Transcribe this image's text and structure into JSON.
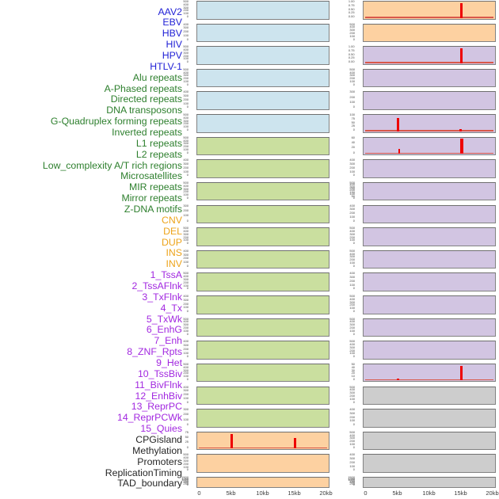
{
  "chart_data": {
    "type": "bar",
    "layout": "44 genomic feature density tracks; features 1-22 in left panel column, features 23-44 in right panel column; each panel spans 0-20kb",
    "x_axis": {
      "tick_labels": [
        "0",
        "5kb",
        "10kb",
        "15kb",
        "20kb"
      ],
      "kb_values": [
        0,
        5,
        10,
        15,
        20
      ],
      "range_kb": [
        0,
        20
      ]
    },
    "group_colors": {
      "virus": "#2323d6",
      "repeat": "#2d7f2d",
      "structural_variant": "#eda41b",
      "chromatin_state": "#a228e0",
      "other": "#262626"
    },
    "panel_bg_colors": {
      "blue": "#cde4ee",
      "green": "#cadf9f",
      "orange": "#fdd1a1",
      "purple": "#d2c5e2",
      "gray": "#cdcdcd"
    },
    "spike_color": "#ee0000",
    "baseline_color": "#d9584a",
    "features": [
      {
        "text": "AAV2",
        "group": "virus"
      },
      {
        "text": "EBV",
        "group": "virus"
      },
      {
        "text": "HBV",
        "group": "virus"
      },
      {
        "text": "HIV",
        "group": "virus"
      },
      {
        "text": "HPV",
        "group": "virus"
      },
      {
        "text": "HTLV-1",
        "group": "virus"
      },
      {
        "text": "Alu repeats",
        "group": "repeat"
      },
      {
        "text": "A-Phased repeats",
        "group": "repeat"
      },
      {
        "text": "Directed repeats",
        "group": "repeat"
      },
      {
        "text": "DNA transposons",
        "group": "repeat"
      },
      {
        "text": "G-Quadruplex forming repeats",
        "group": "repeat"
      },
      {
        "text": "Inverted repeats",
        "group": "repeat"
      },
      {
        "text": "L1 repeats",
        "group": "repeat"
      },
      {
        "text": "L2 repeats",
        "group": "repeat"
      },
      {
        "text": "Low_complexity A/T rich regions",
        "group": "repeat"
      },
      {
        "text": "Microsatellites",
        "group": "repeat"
      },
      {
        "text": "MIR repeats",
        "group": "repeat"
      },
      {
        "text": "Mirror repeats",
        "group": "repeat"
      },
      {
        "text": "Z-DNA motifs",
        "group": "repeat"
      },
      {
        "text": "CNV",
        "group": "structural_variant"
      },
      {
        "text": "DEL",
        "group": "structural_variant"
      },
      {
        "text": "DUP",
        "group": "structural_variant"
      },
      {
        "text": "INS",
        "group": "structural_variant"
      },
      {
        "text": "INV",
        "group": "structural_variant"
      },
      {
        "text": "1_TssA",
        "group": "chromatin_state"
      },
      {
        "text": "2_TssAFlnk",
        "group": "chromatin_state"
      },
      {
        "text": "3_TxFlnk",
        "group": "chromatin_state"
      },
      {
        "text": "4_Tx",
        "group": "chromatin_state"
      },
      {
        "text": "5_TxWk",
        "group": "chromatin_state"
      },
      {
        "text": "6_EnhG",
        "group": "chromatin_state"
      },
      {
        "text": "7_Enh",
        "group": "chromatin_state"
      },
      {
        "text": "8_ZNF_Rpts",
        "group": "chromatin_state"
      },
      {
        "text": "9_Het",
        "group": "chromatin_state"
      },
      {
        "text": "10_TssBiv",
        "group": "chromatin_state"
      },
      {
        "text": "11_BivFlnk",
        "group": "chromatin_state"
      },
      {
        "text": "12_EnhBiv",
        "group": "chromatin_state"
      },
      {
        "text": "13_ReprPC",
        "group": "chromatin_state"
      },
      {
        "text": "14_ReprPCWk",
        "group": "chromatin_state"
      },
      {
        "text": "15_Quies",
        "group": "chromatin_state"
      },
      {
        "text": "CPGisland",
        "group": "other"
      },
      {
        "text": "Methylation",
        "group": "other"
      },
      {
        "text": "Promoters",
        "group": "other"
      },
      {
        "text": "ReplicationTiming",
        "group": "other"
      },
      {
        "text": "TAD_boundary",
        "group": "other"
      }
    ],
    "columns": {
      "left": [
        {
          "feature": "AAV2",
          "bg": "blue",
          "yticks": [
            "500",
            "400",
            "300",
            "200",
            "100",
            "0"
          ],
          "marks": [],
          "baseline": false
        },
        {
          "feature": "EBV",
          "bg": "blue",
          "yticks": [
            "400",
            "300",
            "200",
            "100",
            "0"
          ],
          "marks": [],
          "baseline": false
        },
        {
          "feature": "HBV",
          "bg": "blue",
          "yticks": [
            "500",
            "400",
            "300",
            "200",
            "100",
            "0"
          ],
          "marks": [],
          "baseline": false
        },
        {
          "feature": "HIV",
          "bg": "blue",
          "yticks": [
            "500",
            "400",
            "300",
            "200",
            "100",
            "0"
          ],
          "marks": [],
          "baseline": false
        },
        {
          "feature": "HPV",
          "bg": "blue",
          "yticks": [
            "400",
            "300",
            "200",
            "100",
            "0"
          ],
          "marks": [],
          "baseline": false
        },
        {
          "feature": "HTLV-1",
          "bg": "blue",
          "yticks": [
            "500",
            "400",
            "300",
            "200",
            "100",
            "0"
          ],
          "marks": [],
          "baseline": false
        },
        {
          "feature": "Alu repeats",
          "bg": "green",
          "yticks": [
            "500",
            "400",
            "300",
            "200",
            "100",
            "0"
          ],
          "marks": [],
          "baseline": false
        },
        {
          "feature": "A-Phased repeats",
          "bg": "green",
          "yticks": [
            "400",
            "300",
            "200",
            "100",
            "0"
          ],
          "marks": [],
          "baseline": false
        },
        {
          "feature": "Directed repeats",
          "bg": "green",
          "yticks": [
            "500",
            "400",
            "300",
            "200",
            "100",
            "0"
          ],
          "marks": [],
          "baseline": false
        },
        {
          "feature": "DNA transposons",
          "bg": "green",
          "yticks": [
            "300",
            "200",
            "100",
            "0"
          ],
          "marks": [],
          "baseline": false
        },
        {
          "feature": "G-Quadruplex forming repeats",
          "bg": "green",
          "yticks": [
            "500",
            "400",
            "300",
            "200",
            "100",
            "0"
          ],
          "marks": [],
          "baseline": false
        },
        {
          "feature": "Inverted repeats",
          "bg": "green",
          "yticks": [
            "400",
            "300",
            "200",
            "100",
            "0"
          ],
          "marks": [],
          "baseline": false
        },
        {
          "feature": "L1 repeats",
          "bg": "green",
          "yticks": [
            "500",
            "400",
            "300",
            "200",
            "100",
            "0"
          ],
          "marks": [],
          "baseline": false
        },
        {
          "feature": "L2 repeats",
          "bg": "green",
          "yticks": [
            "400",
            "300",
            "200",
            "100",
            "0"
          ],
          "marks": [],
          "baseline": false
        },
        {
          "feature": "Low_complexity A/T rich regions",
          "bg": "green",
          "yticks": [
            "500",
            "400",
            "300",
            "200",
            "100",
            "0"
          ],
          "marks": [],
          "baseline": false
        },
        {
          "feature": "Microsatellites",
          "bg": "green",
          "yticks": [
            "400",
            "300",
            "200",
            "100",
            "0"
          ],
          "marks": [],
          "baseline": false
        },
        {
          "feature": "MIR repeats",
          "bg": "green",
          "yticks": [
            "500",
            "400",
            "300",
            "200",
            "100",
            "0"
          ],
          "marks": [],
          "baseline": false
        },
        {
          "feature": "Mirror repeats",
          "bg": "green",
          "yticks": [
            "400",
            "300",
            "200",
            "100",
            "0"
          ],
          "marks": [],
          "baseline": false
        },
        {
          "feature": "Z-DNA motifs",
          "bg": "green",
          "yticks": [
            "300",
            "200",
            "100",
            "0"
          ],
          "marks": [],
          "baseline": false
        },
        {
          "feature": "CNV",
          "bg": "orange",
          "yticks": [
            "75",
            "50",
            "25",
            "0"
          ],
          "marks": [
            {
              "kb": 5,
              "height_frac": 0.95,
              "w": 2.5
            },
            {
              "kb": 15,
              "height_frac": 0.7,
              "w": 2.5
            }
          ],
          "baseline": true
        },
        {
          "feature": "DEL",
          "bg": "orange",
          "yticks": [
            "500",
            "400",
            "300",
            "200",
            "100",
            "0"
          ],
          "marks": [],
          "baseline": false
        },
        {
          "feature": "DUP",
          "bg": "orange",
          "yticks": [
            "1500",
            "1250",
            "1000",
            "750",
            "500",
            "250",
            "0"
          ],
          "marks": [],
          "baseline": false
        }
      ],
      "right": [
        {
          "feature": "INS",
          "bg": "orange",
          "yticks": [
            "1.00",
            "0.75",
            "0.50",
            "0.25",
            "0.00"
          ],
          "marks": [
            {
              "kb": 15,
              "height_frac": 0.97,
              "w": 3
            }
          ],
          "baseline": true
        },
        {
          "feature": "INV",
          "bg": "orange",
          "yticks": [
            "500",
            "400",
            "300",
            "200",
            "100",
            "0"
          ],
          "marks": [],
          "baseline": false
        },
        {
          "feature": "1_TssA",
          "bg": "purple",
          "yticks": [
            "1.00",
            "0.75",
            "0.50",
            "0.25",
            "0.00"
          ],
          "marks": [
            {
              "kb": 15,
              "height_frac": 0.97,
              "w": 3
            }
          ],
          "baseline": true
        },
        {
          "feature": "2_TssAFlnk",
          "bg": "purple",
          "yticks": [
            "500",
            "400",
            "300",
            "200",
            "100",
            "0"
          ],
          "marks": [],
          "baseline": false
        },
        {
          "feature": "3_TxFlnk",
          "bg": "purple",
          "yticks": [
            "300",
            "200",
            "100",
            "0"
          ],
          "marks": [],
          "baseline": false
        },
        {
          "feature": "4_Tx",
          "bg": "purple",
          "yticks": [
            "100",
            "75",
            "50",
            "25",
            "0"
          ],
          "marks": [
            {
              "kb": 5,
              "height_frac": 0.86,
              "w": 2.5
            },
            {
              "kb": 14.9,
              "height_frac": 0.13,
              "w": 3
            }
          ],
          "baseline": true
        },
        {
          "feature": "5_TxWk",
          "bg": "purple",
          "yticks": [
            "60",
            "40",
            "20",
            "0"
          ],
          "marks": [
            {
              "kb": 5.2,
              "height_frac": 0.33,
              "w": 2.5
            },
            {
              "kb": 15,
              "height_frac": 0.97,
              "w": 3.5
            }
          ],
          "baseline": true
        },
        {
          "feature": "6_EnhG",
          "bg": "purple",
          "yticks": [
            "400",
            "300",
            "200",
            "100",
            "0"
          ],
          "marks": [],
          "baseline": false
        },
        {
          "feature": "7_Enh",
          "bg": "purple",
          "yticks": [
            "500",
            "400",
            "300",
            "250",
            "200",
            "150",
            "100",
            "50",
            "0"
          ],
          "marks": [],
          "baseline": false
        },
        {
          "feature": "8_ZNF_Rpts",
          "bg": "purple",
          "yticks": [
            "400",
            "300",
            "200",
            "100",
            "0"
          ],
          "marks": [],
          "baseline": false
        },
        {
          "feature": "9_Het",
          "bg": "purple",
          "yticks": [
            "500",
            "400",
            "300",
            "200",
            "100",
            "0"
          ],
          "marks": [],
          "baseline": false
        },
        {
          "feature": "10_TssBiv",
          "bg": "purple",
          "yticks": [
            "500",
            "400",
            "300",
            "200",
            "100",
            "0"
          ],
          "marks": [],
          "baseline": false
        },
        {
          "feature": "11_BivFlnk",
          "bg": "purple",
          "yticks": [
            "400",
            "300",
            "200",
            "100",
            "0"
          ],
          "marks": [],
          "baseline": false
        },
        {
          "feature": "12_EnhBiv",
          "bg": "purple",
          "yticks": [
            "500",
            "400",
            "300",
            "200",
            "100",
            "0"
          ],
          "marks": [],
          "baseline": false
        },
        {
          "feature": "13_ReprPC",
          "bg": "purple",
          "yticks": [
            "500",
            "400",
            "300",
            "200",
            "100",
            "0"
          ],
          "marks": [],
          "baseline": false
        },
        {
          "feature": "14_ReprPCWk",
          "bg": "purple",
          "yticks": [
            "500",
            "400",
            "300",
            "200",
            "100",
            "0"
          ],
          "marks": [],
          "baseline": false
        },
        {
          "feature": "15_Quies",
          "bg": "purple",
          "yticks": [
            "50",
            "40",
            "30",
            "20",
            "10",
            "0"
          ],
          "marks": [
            {
              "kb": 5,
              "height_frac": 0.12,
              "w": 2.5
            },
            {
              "kb": 15,
              "height_frac": 0.97,
              "w": 3
            }
          ],
          "baseline": true
        },
        {
          "feature": "CPGisland",
          "bg": "gray",
          "yticks": [
            "500",
            "400",
            "300",
            "200",
            "100",
            "0"
          ],
          "marks": [],
          "baseline": false
        },
        {
          "feature": "Methylation",
          "bg": "gray",
          "yticks": [
            "400",
            "300",
            "200",
            "100",
            "0"
          ],
          "marks": [],
          "baseline": false
        },
        {
          "feature": "Promoters",
          "bg": "gray",
          "yticks": [
            "500",
            "400",
            "300",
            "200",
            "100",
            "0"
          ],
          "marks": [],
          "baseline": false
        },
        {
          "feature": "ReplicationTiming",
          "bg": "gray",
          "yticks": [
            "400",
            "300",
            "200",
            "100",
            "0"
          ],
          "marks": [],
          "baseline": false
        },
        {
          "feature": "TAD_boundary",
          "bg": "gray",
          "yticks": [
            "1500",
            "1250",
            "1000",
            "750",
            "500",
            "250",
            "0"
          ],
          "marks": [],
          "baseline": false
        }
      ]
    }
  }
}
